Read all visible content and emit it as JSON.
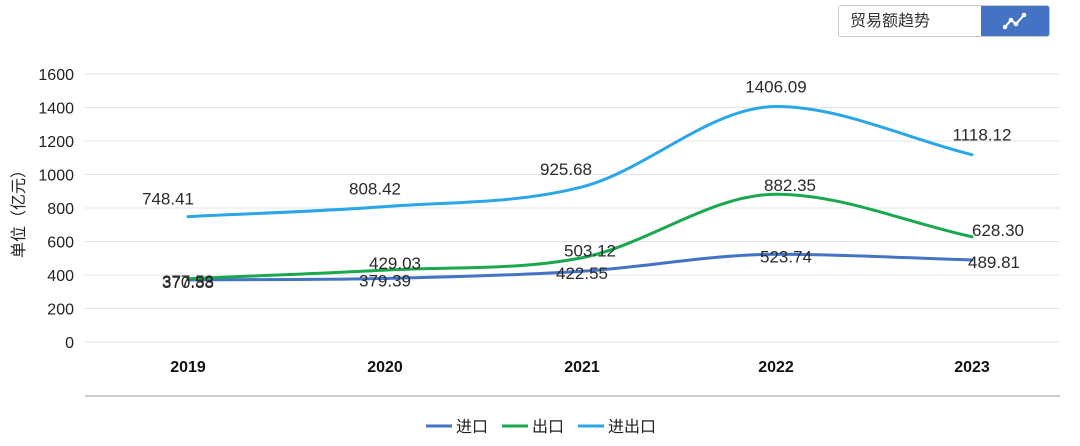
{
  "toolbar": {
    "label": "贸易额趋势",
    "button_icon": "line-chart-icon"
  },
  "chart_data": {
    "type": "line",
    "categories": [
      "2019",
      "2020",
      "2021",
      "2022",
      "2023"
    ],
    "ylabel": "单位（亿元）",
    "xlabel": "",
    "ylim": [
      0,
      1600
    ],
    "yticks": [
      0,
      200,
      400,
      600,
      800,
      1000,
      1200,
      1400,
      1600
    ],
    "grid": true,
    "smooth": true,
    "legend_position": "bottom",
    "series": [
      {
        "name": "进口",
        "color": "#4472c4",
        "values": [
          370.88,
          379.39,
          422.55,
          523.74,
          489.81
        ]
      },
      {
        "name": "出口",
        "color": "#1aa84f",
        "values": [
          377.53,
          429.03,
          503.12,
          882.35,
          628.3
        ]
      },
      {
        "name": "进出口",
        "color": "#2ba6e8",
        "values": [
          748.41,
          808.42,
          925.68,
          1406.09,
          1118.12
        ]
      }
    ]
  }
}
